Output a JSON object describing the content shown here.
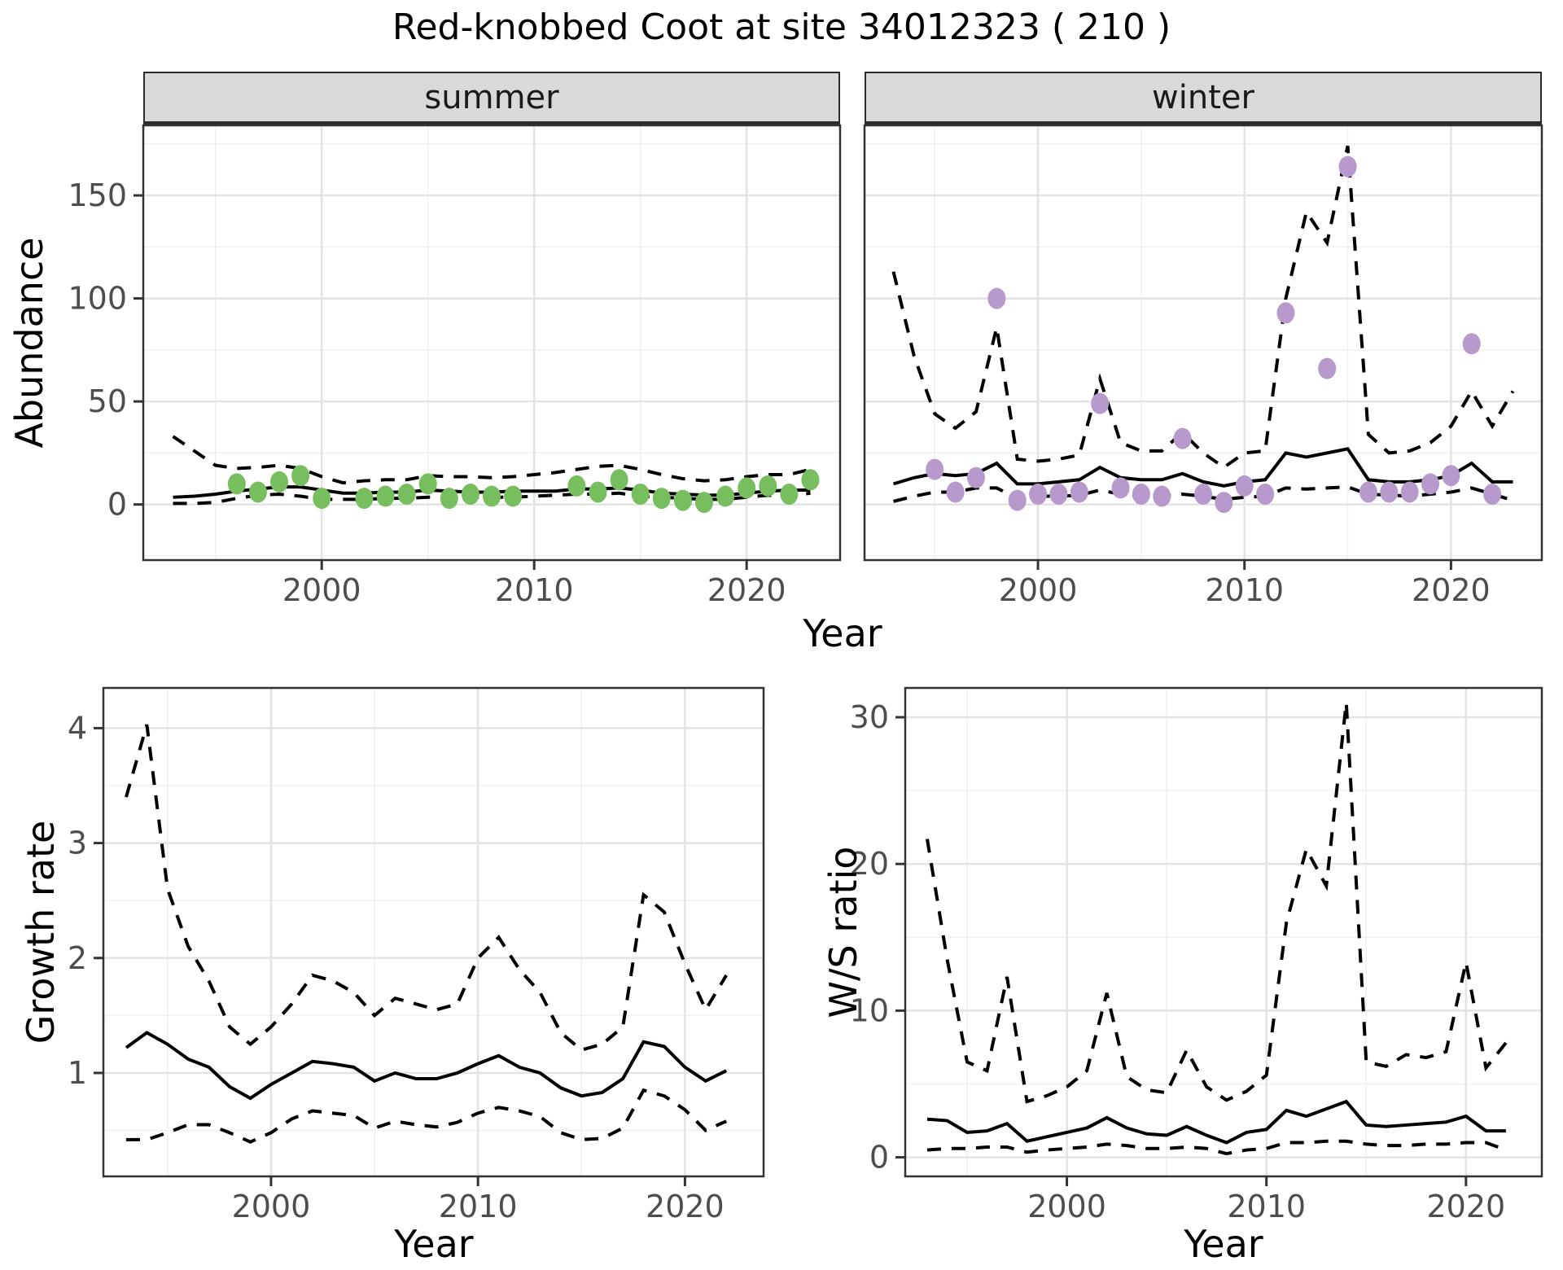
{
  "title": "Red-knobbed Coot at site 34012323 ( 210 )",
  "style": {
    "summer_point_color": "#77BE5E",
    "winter_point_color": "#B799CC",
    "line_color": "#000000",
    "grid_major_color": "#e3e3e3",
    "grid_minor_color": "#f0f0f0",
    "border_color": "#333333",
    "tick_label_color": "#4d4d4d",
    "strip_bg_color": "#d9d9d9"
  },
  "chart_data": [
    {
      "id": "summer",
      "type": "line",
      "facet_label": "summer",
      "xlabel": "Year",
      "ylabel": "Abundance",
      "xlim": [
        1991.6,
        2024.4
      ],
      "ylim": [
        -27,
        184
      ],
      "x_ticks": [
        2000,
        2010,
        2020
      ],
      "y_ticks": [
        0,
        50,
        100,
        150
      ],
      "show_y_tick_labels": true,
      "legend": "none",
      "grid": true,
      "point_color": "#77BE5E",
      "series": [
        {
          "name": "fit",
          "style": "solid",
          "x": [
            1993,
            1994,
            1995,
            1996,
            1997,
            1998,
            1999,
            2000,
            2001,
            2002,
            2003,
            2004,
            2005,
            2006,
            2007,
            2008,
            2009,
            2010,
            2011,
            2012,
            2013,
            2014,
            2015,
            2016,
            2017,
            2018,
            2019,
            2020,
            2021,
            2022,
            2023
          ],
          "y": [
            3.5,
            4,
            5,
            6.5,
            7.5,
            8.5,
            8.5,
            7,
            5.5,
            5.5,
            6,
            6,
            7,
            6.5,
            6,
            6,
            6.5,
            6.5,
            6.5,
            7.5,
            7.5,
            8,
            7,
            5.5,
            5,
            4.5,
            4.5,
            5.5,
            6.5,
            7,
            7
          ]
        },
        {
          "name": "ci_upper",
          "style": "dashed",
          "x": [
            1993,
            1994,
            1995,
            1996,
            1997,
            1998,
            1999,
            2000,
            2001,
            2002,
            2003,
            2004,
            2005,
            2006,
            2007,
            2008,
            2009,
            2010,
            2011,
            2012,
            2013,
            2014,
            2015,
            2016,
            2017,
            2018,
            2019,
            2020,
            2021,
            2022,
            2023
          ],
          "y": [
            33,
            26,
            19,
            17.5,
            18,
            19,
            17.5,
            13.5,
            10.5,
            11.5,
            12,
            12,
            14,
            13.5,
            13.5,
            13,
            13.5,
            14.5,
            15.5,
            17,
            18.5,
            19,
            17,
            14.5,
            12.5,
            11.5,
            12,
            13.5,
            14.5,
            14.5,
            17
          ]
        },
        {
          "name": "ci_lower",
          "style": "dashed",
          "x": [
            1993,
            1994,
            1995,
            1996,
            1997,
            1998,
            1999,
            2000,
            2001,
            2002,
            2003,
            2004,
            2005,
            2006,
            2007,
            2008,
            2009,
            2010,
            2011,
            2012,
            2013,
            2014,
            2015,
            2016,
            2017,
            2018,
            2019,
            2020,
            2021,
            2022,
            2023
          ],
          "y": [
            0.5,
            0.5,
            1,
            3,
            4.5,
            5,
            4,
            2.5,
            2.5,
            2.5,
            3,
            3,
            3.5,
            3.5,
            3.5,
            3.5,
            3.5,
            4,
            4.5,
            5,
            5,
            5.5,
            4,
            3.5,
            3,
            2.5,
            2.5,
            3.5,
            4.5,
            4,
            5.5
          ]
        },
        {
          "name": "observations",
          "style": "points",
          "x": [
            1996,
            1997,
            1998,
            1999,
            2000,
            2002,
            2003,
            2004,
            2005,
            2006,
            2007,
            2008,
            2009,
            2012,
            2013,
            2014,
            2015,
            2016,
            2017,
            2018,
            2019,
            2020,
            2021,
            2022,
            2023
          ],
          "y": [
            10,
            6,
            11,
            14,
            3,
            3,
            4,
            5,
            10,
            3,
            5,
            4,
            4,
            9,
            6,
            12,
            5,
            3,
            2,
            1,
            4,
            8,
            9,
            5,
            12
          ]
        }
      ]
    },
    {
      "id": "winter",
      "type": "line",
      "facet_label": "winter",
      "xlabel": "Year",
      "ylabel": "Abundance",
      "xlim": [
        1991.6,
        2024.4
      ],
      "ylim": [
        -27,
        184
      ],
      "x_ticks": [
        2000,
        2010,
        2020
      ],
      "y_ticks": [
        0,
        50,
        100,
        150
      ],
      "show_y_tick_labels": false,
      "legend": "none",
      "grid": true,
      "point_color": "#B799CC",
      "series": [
        {
          "name": "fit",
          "style": "solid",
          "x": [
            1993,
            1994,
            1995,
            1996,
            1997,
            1998,
            1999,
            2000,
            2001,
            2002,
            2003,
            2004,
            2005,
            2006,
            2007,
            2008,
            2009,
            2010,
            2011,
            2012,
            2013,
            2014,
            2015,
            2016,
            2017,
            2018,
            2019,
            2020,
            2021,
            2022,
            2023
          ],
          "y": [
            10,
            13,
            15,
            14,
            15,
            20,
            10,
            10,
            11,
            12,
            18,
            13,
            12,
            12,
            15,
            11,
            9,
            11,
            12,
            25,
            23,
            25,
            27,
            12,
            11,
            11,
            12,
            14,
            20,
            11,
            11
          ]
        },
        {
          "name": "ci_upper",
          "style": "dashed",
          "x": [
            1993,
            1994,
            1995,
            1996,
            1997,
            1998,
            1999,
            2000,
            2001,
            2002,
            2003,
            2004,
            2005,
            2006,
            2007,
            2008,
            2009,
            2010,
            2011,
            2012,
            2013,
            2014,
            2015,
            2016,
            2017,
            2018,
            2019,
            2020,
            2021,
            2022,
            2023
          ],
          "y": [
            113,
            72,
            44,
            37,
            45,
            86,
            22,
            21,
            22,
            24,
            61,
            30,
            26,
            26,
            35,
            25,
            18,
            25,
            26,
            100,
            142,
            127,
            174,
            34,
            25,
            26,
            30,
            38,
            55,
            38,
            55
          ]
        },
        {
          "name": "ci_lower",
          "style": "dashed",
          "x": [
            1993,
            1994,
            1995,
            1996,
            1997,
            1998,
            1999,
            2000,
            2001,
            2002,
            2003,
            2004,
            2005,
            2006,
            2007,
            2008,
            2009,
            2010,
            2011,
            2012,
            2013,
            2014,
            2015,
            2016,
            2017,
            2018,
            2019,
            2020,
            2021,
            2022,
            2023
          ],
          "y": [
            1.5,
            4,
            6,
            6,
            8,
            8,
            3,
            4,
            4,
            4.5,
            7,
            5,
            4,
            4,
            5,
            4,
            2.5,
            3.5,
            4,
            8,
            7.5,
            8,
            8.5,
            5,
            4.5,
            4,
            5,
            6,
            8,
            5,
            2
          ]
        },
        {
          "name": "observations",
          "style": "points",
          "x": [
            1995,
            1996,
            1997,
            1998,
            1999,
            2000,
            2001,
            2002,
            2003,
            2004,
            2005,
            2006,
            2007,
            2008,
            2009,
            2010,
            2011,
            2012,
            2014,
            2015,
            2016,
            2017,
            2018,
            2019,
            2020,
            2021,
            2022
          ],
          "y": [
            17,
            6,
            13,
            100,
            2,
            5,
            5,
            6,
            49,
            8,
            5,
            4,
            32,
            5,
            1,
            9,
            5,
            93,
            66,
            164,
            6,
            6,
            6,
            10,
            14,
            78,
            5
          ]
        }
      ]
    },
    {
      "id": "growth",
      "type": "line",
      "facet_label": "",
      "xlabel": "Year",
      "ylabel": "Growth rate",
      "xlim": [
        1991.9,
        2023.8
      ],
      "ylim": [
        0.1,
        4.35
      ],
      "x_ticks": [
        2000,
        2010,
        2020
      ],
      "y_ticks": [
        1,
        2,
        3,
        4
      ],
      "show_y_tick_labels": true,
      "legend": "none",
      "grid": true,
      "point_color": "#000000",
      "series": [
        {
          "name": "fit",
          "style": "solid",
          "x": [
            1993,
            1994,
            1995,
            1996,
            1997,
            1998,
            1999,
            2000,
            2001,
            2002,
            2003,
            2004,
            2005,
            2006,
            2007,
            2008,
            2009,
            2010,
            2011,
            2012,
            2013,
            2014,
            2015,
            2016,
            2017,
            2018,
            2019,
            2020,
            2021,
            2022
          ],
          "y": [
            1.22,
            1.35,
            1.25,
            1.12,
            1.05,
            0.88,
            0.78,
            0.9,
            1.0,
            1.1,
            1.08,
            1.05,
            0.93,
            1.0,
            0.95,
            0.95,
            1.0,
            1.08,
            1.15,
            1.05,
            1.0,
            0.87,
            0.8,
            0.83,
            0.95,
            1.27,
            1.23,
            1.05,
            0.93,
            1.02
          ]
        },
        {
          "name": "ci_upper",
          "style": "dashed",
          "x": [
            1993,
            1994,
            1995,
            1996,
            1997,
            1998,
            1999,
            2000,
            2001,
            2002,
            2003,
            2004,
            2005,
            2006,
            2007,
            2008,
            2009,
            2010,
            2011,
            2012,
            2013,
            2014,
            2015,
            2016,
            2017,
            2018,
            2019,
            2020,
            2021,
            2022
          ],
          "y": [
            3.4,
            4.03,
            2.6,
            2.1,
            1.8,
            1.4,
            1.25,
            1.4,
            1.6,
            1.85,
            1.8,
            1.7,
            1.5,
            1.65,
            1.6,
            1.55,
            1.6,
            2.0,
            2.18,
            1.9,
            1.7,
            1.35,
            1.2,
            1.25,
            1.4,
            2.55,
            2.4,
            1.95,
            1.55,
            1.85
          ]
        },
        {
          "name": "ci_lower",
          "style": "dashed",
          "x": [
            1993,
            1994,
            1995,
            1996,
            1997,
            1998,
            1999,
            2000,
            2001,
            2002,
            2003,
            2004,
            2005,
            2006,
            2007,
            2008,
            2009,
            2010,
            2011,
            2012,
            2013,
            2014,
            2015,
            2016,
            2017,
            2018,
            2019,
            2020,
            2021,
            2022
          ],
          "y": [
            0.42,
            0.42,
            0.48,
            0.55,
            0.55,
            0.48,
            0.4,
            0.48,
            0.6,
            0.67,
            0.65,
            0.63,
            0.52,
            0.58,
            0.55,
            0.53,
            0.57,
            0.65,
            0.7,
            0.67,
            0.62,
            0.48,
            0.42,
            0.43,
            0.52,
            0.85,
            0.8,
            0.68,
            0.5,
            0.58
          ]
        }
      ]
    },
    {
      "id": "ws",
      "type": "line",
      "facet_label": "",
      "xlabel": "Year",
      "ylabel": "W/S ratio",
      "xlim": [
        1991.9,
        2023.8
      ],
      "ylim": [
        -1.3,
        32
      ],
      "x_ticks": [
        2000,
        2010,
        2020
      ],
      "y_ticks": [
        0,
        10,
        20,
        30
      ],
      "show_y_tick_labels": true,
      "legend": "none",
      "grid": true,
      "point_color": "#000000",
      "series": [
        {
          "name": "fit",
          "style": "solid",
          "x": [
            1993,
            1994,
            1995,
            1996,
            1997,
            1998,
            1999,
            2000,
            2001,
            2002,
            2003,
            2004,
            2005,
            2006,
            2007,
            2008,
            2009,
            2010,
            2011,
            2012,
            2013,
            2014,
            2015,
            2016,
            2017,
            2018,
            2019,
            2020,
            2021,
            2022
          ],
          "y": [
            2.6,
            2.5,
            1.7,
            1.8,
            2.3,
            1.1,
            1.4,
            1.7,
            2.0,
            2.7,
            2.0,
            1.6,
            1.5,
            2.1,
            1.5,
            1.0,
            1.7,
            1.9,
            3.2,
            2.8,
            3.3,
            3.8,
            2.2,
            2.1,
            2.2,
            2.3,
            2.4,
            2.8,
            1.8,
            1.8
          ]
        },
        {
          "name": "ci_upper",
          "style": "dashed",
          "x": [
            1993,
            1994,
            1995,
            1996,
            1997,
            1998,
            1999,
            2000,
            2001,
            2002,
            2003,
            2004,
            2005,
            2006,
            2007,
            2008,
            2009,
            2010,
            2011,
            2012,
            2013,
            2014,
            2015,
            2016,
            2017,
            2018,
            2019,
            2020,
            2021,
            2022
          ],
          "y": [
            21.7,
            13.5,
            6.5,
            5.9,
            12.3,
            3.8,
            4.2,
            4.8,
            5.9,
            11.2,
            5.5,
            4.6,
            4.4,
            7.3,
            4.8,
            3.9,
            4.5,
            5.6,
            16.0,
            21.0,
            18.5,
            31.0,
            6.5,
            6.2,
            7.0,
            6.8,
            7.2,
            13.3,
            6.1,
            7.8
          ]
        },
        {
          "name": "ci_lower",
          "style": "dashed",
          "x": [
            1993,
            1994,
            1995,
            1996,
            1997,
            1998,
            1999,
            2000,
            2001,
            2002,
            2003,
            2004,
            2005,
            2006,
            2007,
            2008,
            2009,
            2010,
            2011,
            2012,
            2013,
            2014,
            2015,
            2016,
            2017,
            2018,
            2019,
            2020,
            2021,
            2022
          ],
          "y": [
            0.5,
            0.6,
            0.6,
            0.7,
            0.7,
            0.35,
            0.5,
            0.6,
            0.7,
            0.9,
            0.8,
            0.6,
            0.6,
            0.7,
            0.6,
            0.25,
            0.5,
            0.6,
            1.0,
            1.0,
            1.1,
            1.1,
            0.9,
            0.8,
            0.8,
            0.9,
            0.9,
            1.0,
            1.0,
            0.5
          ]
        }
      ]
    }
  ]
}
